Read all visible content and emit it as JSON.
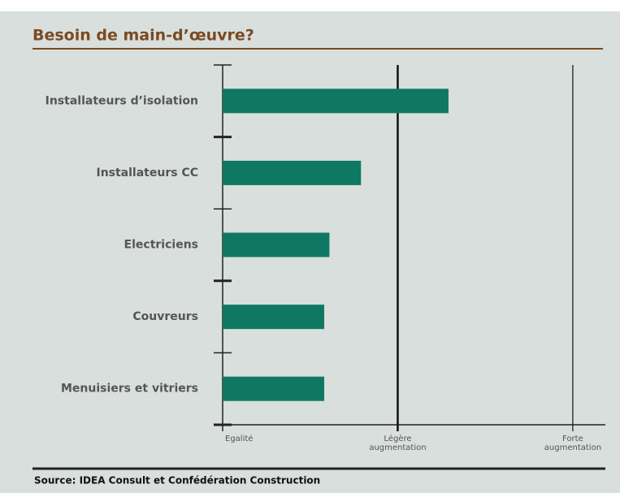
{
  "chart_data": {
    "type": "barh",
    "title": "Besoin de main-d’œuvre?",
    "categories": [
      "Installateurs d’isolation",
      "Installateurs CC",
      "Electriciens",
      "Couvreurs",
      "Menuisiers et vitriers"
    ],
    "values": [
      1.29,
      0.79,
      0.61,
      0.58,
      0.58
    ],
    "color": "#0f7862",
    "xlim": [
      0,
      2.2
    ],
    "xticks": [
      {
        "value": 0,
        "label": "Egalité"
      },
      {
        "value": 1,
        "label": "Légère augmentation"
      },
      {
        "value": 2,
        "label": "Forte augmentation"
      }
    ],
    "grid": true,
    "source": "Source: IDEA Consult et Confédération Construction"
  }
}
